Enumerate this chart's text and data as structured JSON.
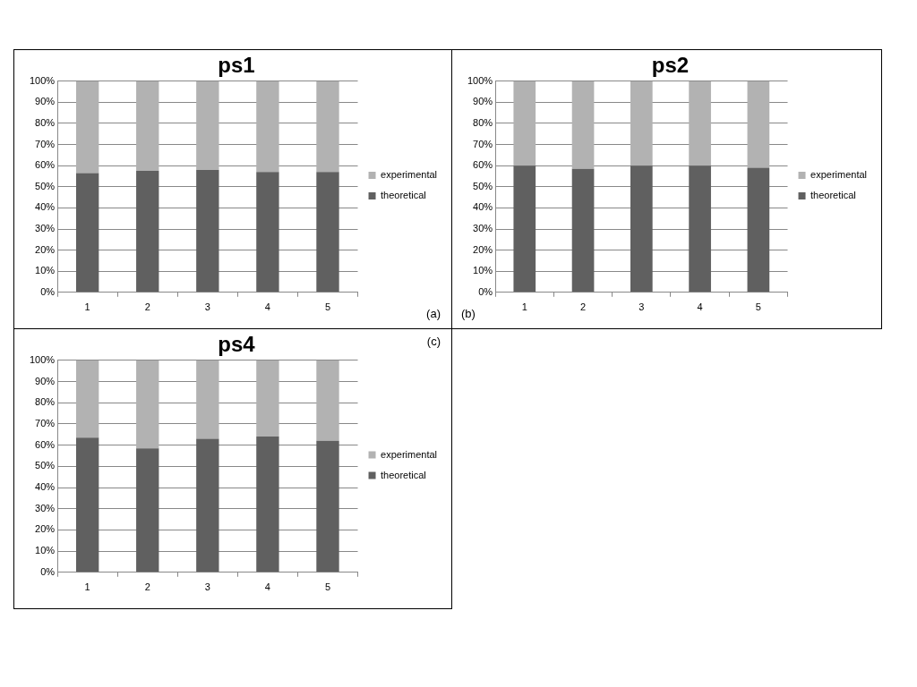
{
  "chart_data": [
    {
      "type": "bar",
      "title": "ps1",
      "categories": [
        "1",
        "2",
        "3",
        "4",
        "5"
      ],
      "series": [
        {
          "name": "theoretical",
          "color": "#606060",
          "values": [
            56.5,
            57.5,
            58,
            57,
            57
          ]
        },
        {
          "name": "experimental",
          "color": "#b2b2b2",
          "values": [
            43.5,
            42.5,
            42,
            43,
            43
          ]
        }
      ],
      "stacked": true,
      "ylim": [
        0,
        100
      ],
      "yticks": [
        {
          "value": 0,
          "label": "0%"
        },
        {
          "value": 10,
          "label": "10%"
        },
        {
          "value": 20,
          "label": "20%"
        },
        {
          "value": 30,
          "label": "30%"
        },
        {
          "value": 40,
          "label": "40%"
        },
        {
          "value": 50,
          "label": "50%"
        },
        {
          "value": 60,
          "label": "60%"
        },
        {
          "value": 70,
          "label": "70%"
        },
        {
          "value": 80,
          "label": "80%"
        },
        {
          "value": 90,
          "label": "90%"
        },
        {
          "value": 100,
          "label": "100%"
        }
      ],
      "grid": "y",
      "legend": "right",
      "annotations": [
        "(a)"
      ]
    },
    {
      "type": "bar",
      "title": "ps2",
      "categories": [
        "1",
        "2",
        "3",
        "4",
        "5"
      ],
      "series": [
        {
          "name": "theoretical",
          "color": "#606060",
          "values": [
            60,
            58.5,
            60,
            60,
            59
          ]
        },
        {
          "name": "experimental",
          "color": "#b2b2b2",
          "values": [
            40,
            41.5,
            40,
            40,
            41
          ]
        }
      ],
      "stacked": true,
      "ylim": [
        0,
        100
      ],
      "yticks": [
        {
          "value": 0,
          "label": "0%"
        },
        {
          "value": 10,
          "label": "10%"
        },
        {
          "value": 20,
          "label": "20%"
        },
        {
          "value": 30,
          "label": "30%"
        },
        {
          "value": 40,
          "label": "40%"
        },
        {
          "value": 50,
          "label": "50%"
        },
        {
          "value": 60,
          "label": "60%"
        },
        {
          "value": 70,
          "label": "70%"
        },
        {
          "value": 80,
          "label": "80%"
        },
        {
          "value": 90,
          "label": "90%"
        },
        {
          "value": 100,
          "label": "100%"
        }
      ],
      "grid": "y",
      "legend": "right",
      "annotations": [
        "(b)"
      ]
    },
    {
      "type": "bar",
      "title": "ps4",
      "categories": [
        "1",
        "2",
        "3",
        "4",
        "5"
      ],
      "series": [
        {
          "name": "theoretical",
          "color": "#606060",
          "values": [
            63.5,
            58.5,
            63,
            64,
            62
          ]
        },
        {
          "name": "experimental",
          "color": "#b2b2b2",
          "values": [
            36.5,
            41.5,
            37,
            36,
            38
          ]
        }
      ],
      "stacked": true,
      "ylim": [
        0,
        100
      ],
      "yticks": [
        {
          "value": 0,
          "label": "0%"
        },
        {
          "value": 10,
          "label": "10%"
        },
        {
          "value": 20,
          "label": "20%"
        },
        {
          "value": 30,
          "label": "30%"
        },
        {
          "value": 40,
          "label": "40%"
        },
        {
          "value": 50,
          "label": "50%"
        },
        {
          "value": 60,
          "label": "60%"
        },
        {
          "value": 70,
          "label": "70%"
        },
        {
          "value": 80,
          "label": "80%"
        },
        {
          "value": 90,
          "label": "90%"
        },
        {
          "value": 100,
          "label": "100%"
        }
      ],
      "grid": "y",
      "legend": "right",
      "annotations": [
        "(c)"
      ]
    }
  ]
}
